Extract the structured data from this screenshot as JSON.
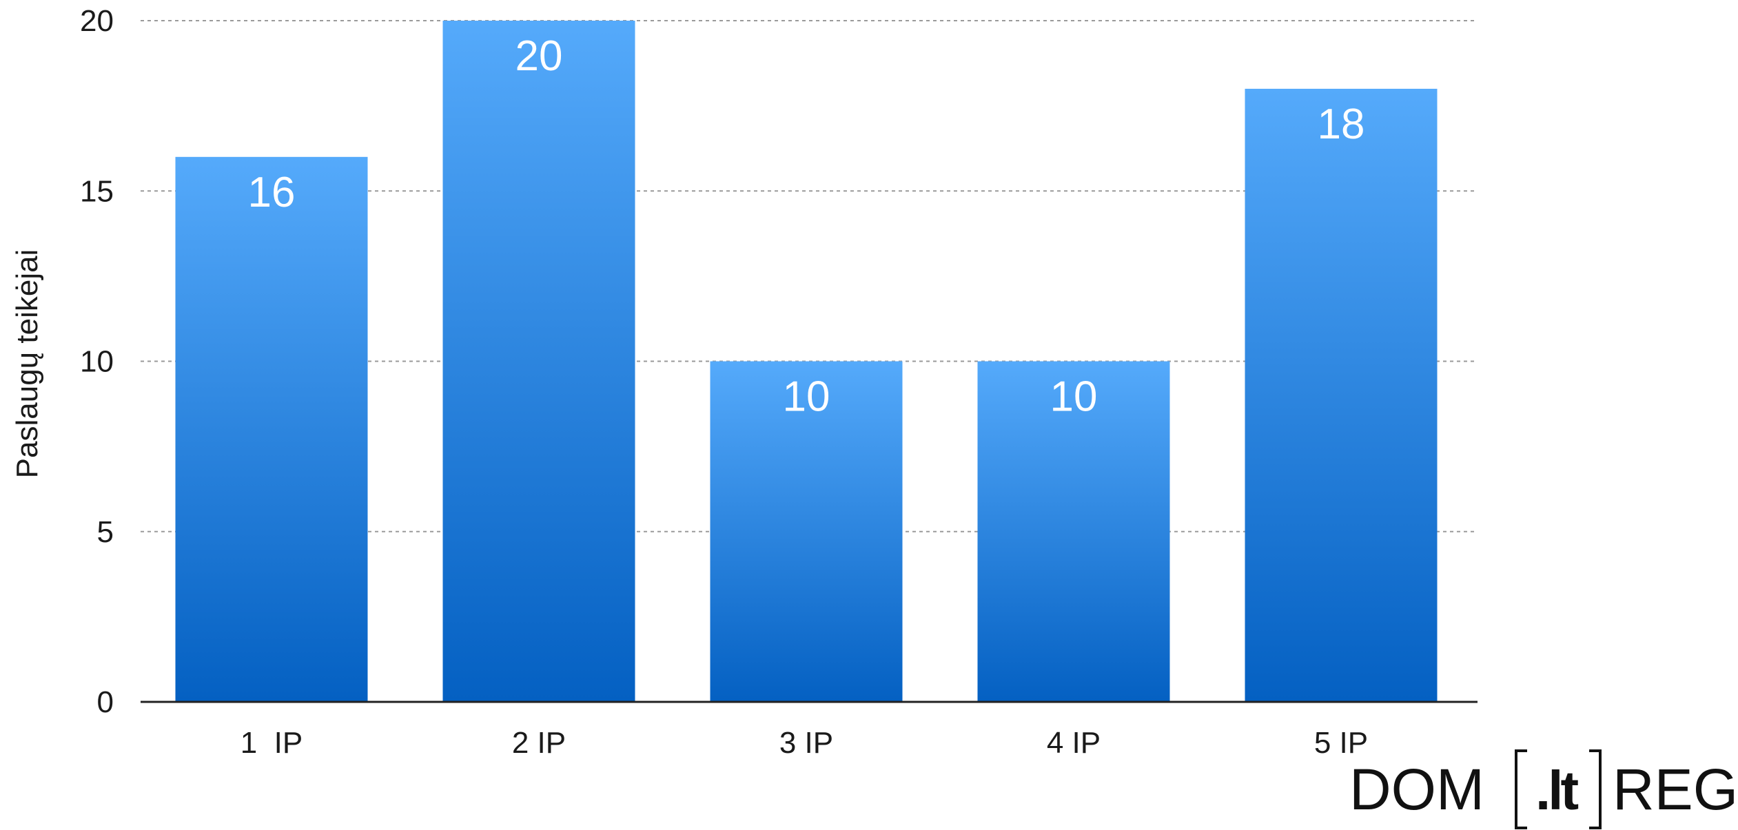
{
  "chart_data": {
    "type": "bar",
    "categories": [
      "1  IP",
      "2 IP",
      "3 IP",
      "4 IP",
      "5 IP"
    ],
    "values": [
      16,
      20,
      10,
      10,
      18
    ],
    "ylabel": "Paslaugų teikėjai",
    "xlabel": "",
    "ylim": [
      0,
      20
    ],
    "yticks": [
      0,
      5,
      10,
      15,
      20
    ],
    "grid": true,
    "data_labels": true,
    "colors": {
      "bar_top": "#55AAFB",
      "bar_bottom": "#0460C2",
      "grid": "#9a9a9a",
      "axis": "#222222"
    }
  },
  "logo": {
    "left": "DOM",
    "middle": ".lt",
    "right": "REG"
  }
}
